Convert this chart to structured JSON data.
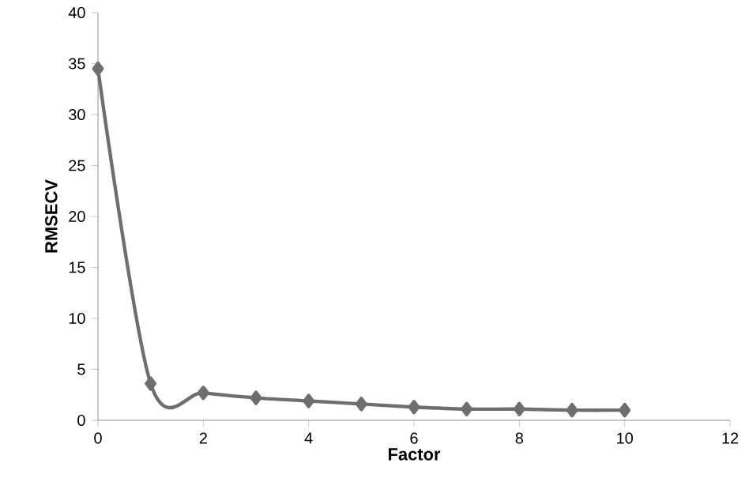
{
  "chart_data": {
    "type": "line",
    "xlabel": "Factor",
    "ylabel": "RMSECV",
    "x": [
      0,
      1,
      2,
      3,
      4,
      5,
      6,
      7,
      8,
      9,
      10
    ],
    "series": [
      {
        "color": "#6e6e6e",
        "values": [
          34.5,
          3.6,
          2.7,
          2.2,
          1.9,
          1.6,
          1.3,
          1.1,
          1.1,
          1.0,
          1.0
        ]
      }
    ],
    "xlim": [
      0,
      12
    ],
    "ylim": [
      0,
      40
    ],
    "xticks": [
      0,
      2,
      4,
      6,
      8,
      10,
      12
    ],
    "yticks": [
      0,
      5,
      10,
      15,
      20,
      25,
      30,
      35,
      40
    ],
    "grid": false,
    "marker": "diamond",
    "line_style": "solid"
  }
}
